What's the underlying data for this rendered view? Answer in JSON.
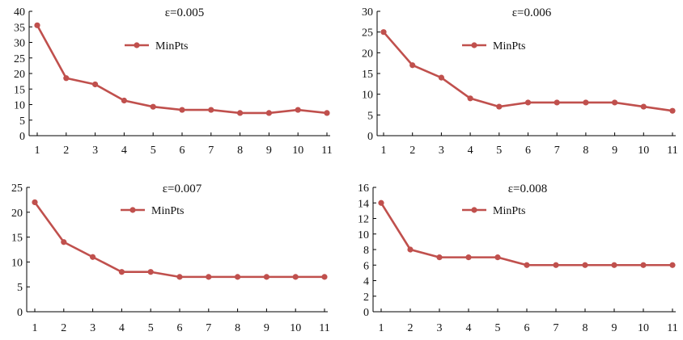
{
  "chart_data": [
    {
      "type": "line",
      "title": "ε=0.005",
      "x": [
        1,
        2,
        3,
        4,
        5,
        6,
        7,
        8,
        9,
        10,
        11
      ],
      "series": [
        {
          "name": "MinPts",
          "values": [
            35.5,
            18.5,
            16.5,
            11.3,
            9.3,
            8.3,
            8.3,
            7.3,
            7.3,
            8.3,
            7.3
          ]
        }
      ],
      "ylim": [
        0,
        40
      ],
      "yticks": [
        0,
        5,
        10,
        15,
        20,
        25,
        30,
        35,
        40
      ],
      "legend": "top-center",
      "grid": false,
      "color": "#c0504d"
    },
    {
      "type": "line",
      "title": "ε=0.006",
      "x": [
        1,
        2,
        3,
        4,
        5,
        6,
        7,
        8,
        9,
        10,
        11
      ],
      "series": [
        {
          "name": "MinPts",
          "values": [
            25,
            17,
            14,
            9,
            7,
            8,
            8,
            8,
            8,
            7,
            6
          ]
        }
      ],
      "ylim": [
        0,
        30
      ],
      "yticks": [
        0,
        5,
        10,
        15,
        20,
        25,
        30
      ],
      "legend": "top-center",
      "grid": false,
      "color": "#c0504d"
    },
    {
      "type": "line",
      "title": "ε=0.007",
      "x": [
        1,
        2,
        3,
        4,
        5,
        6,
        7,
        8,
        9,
        10,
        11
      ],
      "series": [
        {
          "name": "MinPts",
          "values": [
            22,
            14,
            11,
            8,
            8,
            7,
            7,
            7,
            7,
            7,
            7
          ]
        }
      ],
      "ylim": [
        0,
        25
      ],
      "yticks": [
        0,
        5,
        10,
        15,
        20,
        25
      ],
      "legend": "top-center",
      "grid": false,
      "color": "#c0504d"
    },
    {
      "type": "line",
      "title": "ε=0.008",
      "x": [
        1,
        2,
        3,
        4,
        5,
        6,
        7,
        8,
        9,
        10,
        11
      ],
      "series": [
        {
          "name": "MinPts",
          "values": [
            14,
            8,
            7,
            7,
            7,
            6,
            6,
            6,
            6,
            6,
            6
          ]
        }
      ],
      "ylim": [
        0,
        16
      ],
      "yticks": [
        0,
        2,
        4,
        6,
        8,
        10,
        12,
        14,
        16
      ],
      "legend": "top-center",
      "grid": false,
      "color": "#c0504d"
    }
  ]
}
